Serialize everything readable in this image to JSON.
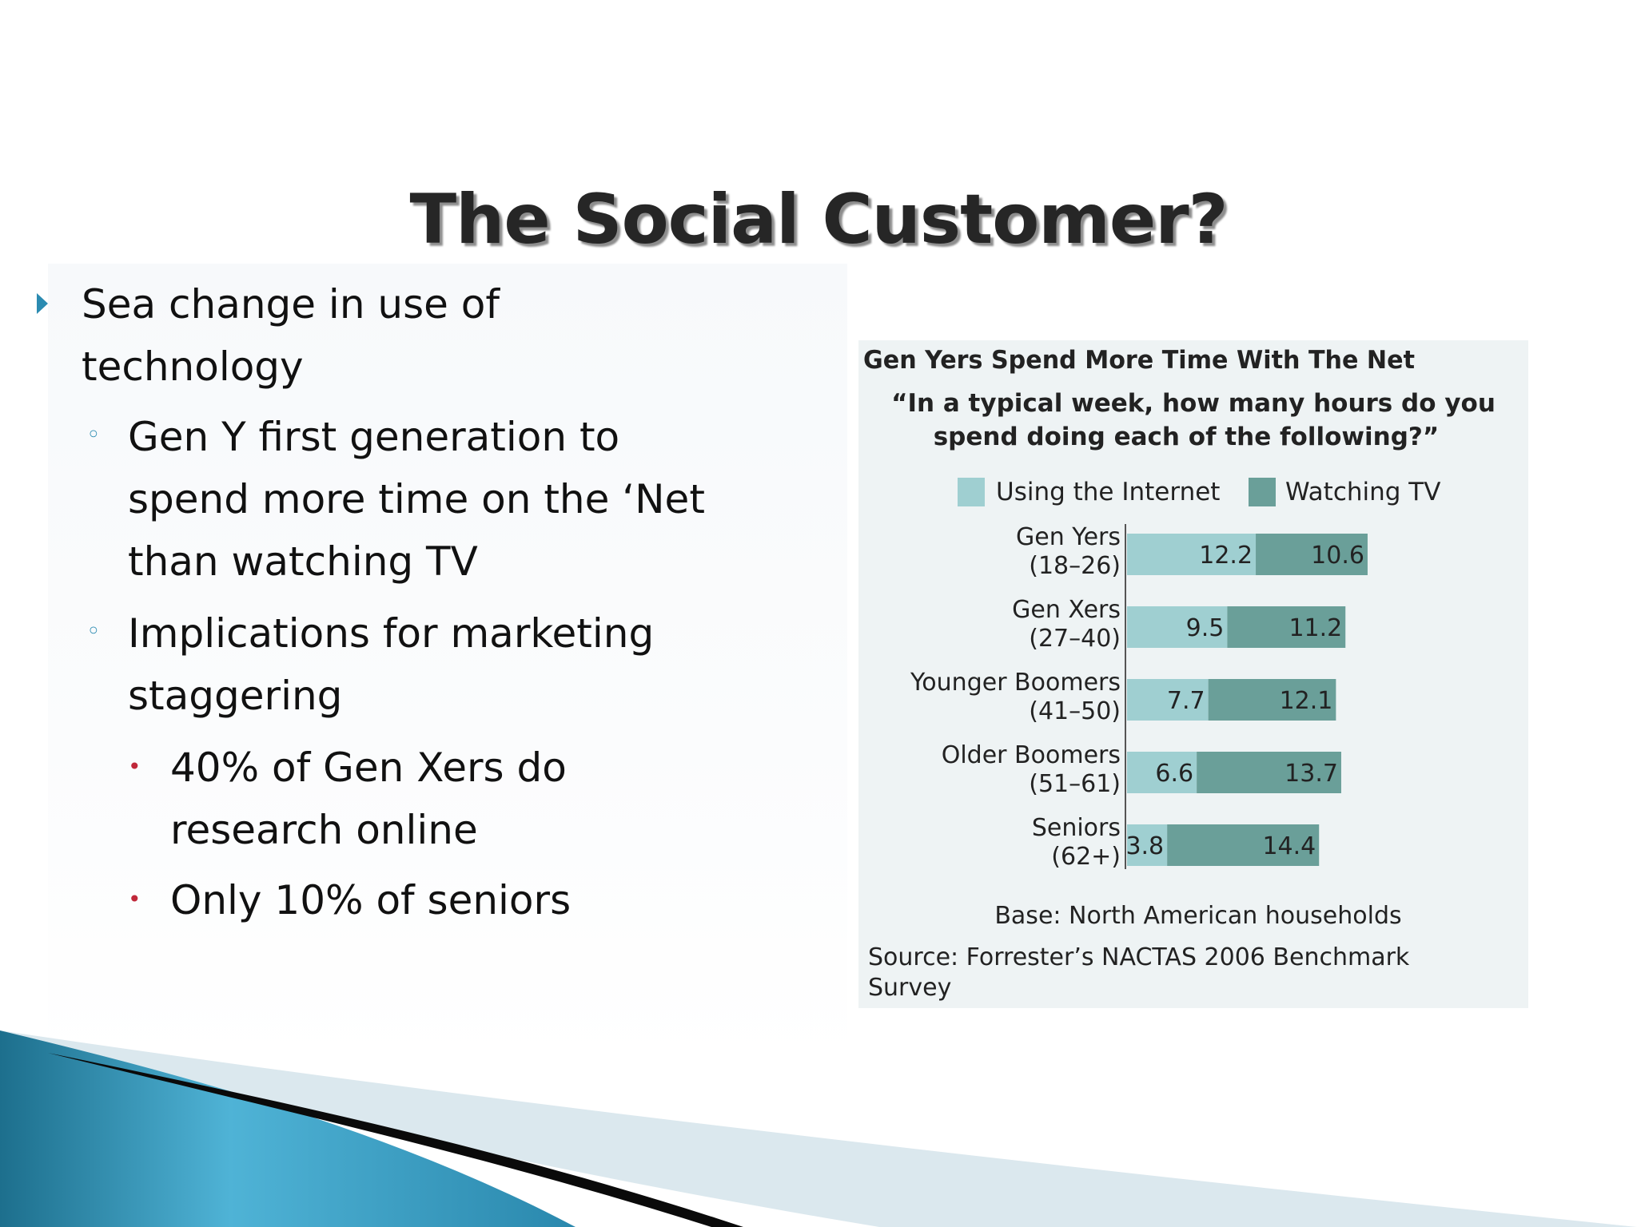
{
  "slide": {
    "title": "The Social Customer?",
    "bullets": [
      {
        "level": 1,
        "lines": [
          "Sea change in use of",
          "technology"
        ]
      },
      {
        "level": 2,
        "lines": [
          "Gen Y first generation to",
          "spend more time on the ‘Net",
          "than watching TV"
        ]
      },
      {
        "level": 2,
        "lines": [
          "Implications for marketing",
          "staggering"
        ]
      },
      {
        "level": 3,
        "lines": [
          "40% of Gen Xers do",
          "research online"
        ]
      },
      {
        "level": 3,
        "lines": [
          "Only 10% of seniors"
        ]
      }
    ]
  },
  "chart_data": {
    "type": "bar",
    "orientation": "horizontal",
    "stacked": true,
    "title": "Gen Yers Spend More Time With The Net",
    "subtitle": "“In a typical week, how many hours do you spend doing each of the following?”",
    "categories": [
      {
        "name": "Gen Yers",
        "range": "(18–26)"
      },
      {
        "name": "Gen Xers",
        "range": "(27–40)"
      },
      {
        "name": "Younger Boomers",
        "range": "(41–50)"
      },
      {
        "name": "Older Boomers",
        "range": "(51–61)"
      },
      {
        "name": "Seniors",
        "range": "(62+)"
      }
    ],
    "series": [
      {
        "name": "Using the Internet",
        "color": "#9fcfd1",
        "values": [
          12.2,
          9.5,
          7.7,
          6.6,
          3.8
        ]
      },
      {
        "name": "Watching TV",
        "color": "#6a9f99",
        "values": [
          10.6,
          11.2,
          12.1,
          13.7,
          14.4
        ]
      }
    ],
    "legend_position": "top",
    "grid": false,
    "footnote_base": "Base: North American households",
    "footnote_source": "Source: Forrester’s NACTAS 2006 Benchmark Survey"
  },
  "colors": {
    "accent": "#2b8bb1",
    "sub_bullet": "#c0283a",
    "panel_bg": "#eef3f4"
  }
}
